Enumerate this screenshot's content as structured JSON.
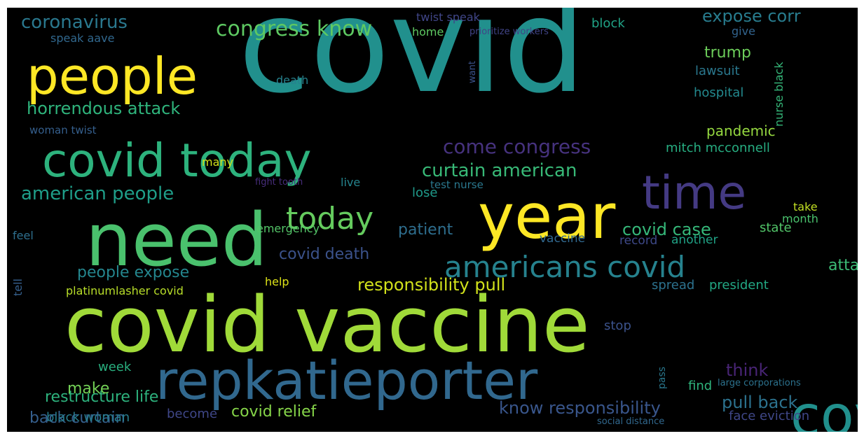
{
  "colors": {
    "background": "#000000",
    "palette": [
      "#440154",
      "#443a83",
      "#31688e",
      "#21908d",
      "#35b779",
      "#8fd744",
      "#fde725"
    ]
  },
  "words": [
    {
      "text": "covid",
      "c": "#21908d",
      "v": false
    },
    {
      "text": "covid vaccine",
      "c": "#a0da39",
      "v": false
    },
    {
      "text": "repkatieporter",
      "c": "#31688e",
      "v": false
    },
    {
      "text": "need",
      "c": "#4ac16d",
      "v": false
    },
    {
      "text": "year",
      "c": "#fde725",
      "v": false
    },
    {
      "text": "people",
      "c": "#fde725",
      "v": false
    },
    {
      "text": "covid today",
      "c": "#2db27d",
      "v": false
    },
    {
      "text": "covid test",
      "c": "#21908d",
      "v": true
    },
    {
      "text": "time",
      "c": "#443a83",
      "v": false
    },
    {
      "text": "americans covid",
      "c": "#26828e",
      "v": false
    },
    {
      "text": "today",
      "c": "#65cb5e",
      "v": false
    },
    {
      "text": "congress know",
      "c": "#5ec962",
      "v": false
    },
    {
      "text": "coronavirus",
      "c": "#2a788e",
      "v": false
    },
    {
      "text": "horrendous attack",
      "c": "#2fb47c",
      "v": false
    },
    {
      "text": "american people",
      "c": "#1f9e89",
      "v": false
    },
    {
      "text": "come congress",
      "c": "#46327e",
      "v": false
    },
    {
      "text": "curtain american",
      "c": "#38b977",
      "v": false
    },
    {
      "text": "expose corr",
      "c": "#287c8e",
      "v": false
    },
    {
      "text": "trump",
      "c": "#6ccd5a",
      "v": false
    },
    {
      "text": "lawsuit",
      "c": "#2a788e",
      "v": false
    },
    {
      "text": "hospital",
      "c": "#23898e",
      "v": false
    },
    {
      "text": "pandemic",
      "c": "#95d840",
      "v": false
    },
    {
      "text": "mitch mcconnell",
      "c": "#27ad81",
      "v": false
    },
    {
      "text": "attack restructure",
      "c": "#3cbb75",
      "v": true
    },
    {
      "text": "responsibility pull",
      "c": "#d2e21b",
      "v": false
    },
    {
      "text": "people expose",
      "c": "#24868e",
      "v": false
    },
    {
      "text": "platinumlasher covid",
      "c": "#b8de29",
      "v": false
    },
    {
      "text": "covid death",
      "c": "#3b528b",
      "v": false
    },
    {
      "text": "patient",
      "c": "#2e6e8e",
      "v": false
    },
    {
      "text": "covid case",
      "c": "#35b779",
      "v": false
    },
    {
      "text": "state",
      "c": "#52c569",
      "v": false
    },
    {
      "text": "restructure life",
      "c": "#2db27d",
      "v": true
    },
    {
      "text": "back curtain",
      "c": "#355f8d",
      "v": true
    },
    {
      "text": "think",
      "c": "#482475",
      "v": false
    },
    {
      "text": "pull back",
      "c": "#2c728e",
      "v": false
    },
    {
      "text": "know responsibility",
      "c": "#39568c",
      "v": false
    },
    {
      "text": "covid relief",
      "c": "#86d549",
      "v": false
    },
    {
      "text": "black woman",
      "c": "#287d8e",
      "v": false
    },
    {
      "text": "become",
      "c": "#3f4788",
      "v": false
    },
    {
      "text": "face eviction",
      "c": "#3f4788",
      "v": false
    },
    {
      "text": "make",
      "c": "#73d056",
      "v": false
    },
    {
      "text": "week",
      "c": "#29af7f",
      "v": false
    },
    {
      "text": "stop",
      "c": "#3b528b",
      "v": false
    },
    {
      "text": "find",
      "c": "#2fb47c",
      "v": false
    },
    {
      "text": "spread",
      "c": "#2c728e",
      "v": false
    },
    {
      "text": "president",
      "c": "#22a884",
      "v": false
    },
    {
      "text": "help",
      "c": "#dde318",
      "v": false
    },
    {
      "text": "emergency",
      "c": "#54c568",
      "v": false
    },
    {
      "text": "another",
      "c": "#20a386",
      "v": false
    },
    {
      "text": "record",
      "c": "#3e4989",
      "v": false
    },
    {
      "text": "vaccine",
      "c": "#31688e",
      "v": false
    },
    {
      "text": "take",
      "c": "#c2df23",
      "v": false
    },
    {
      "text": "month",
      "c": "#4ac16d",
      "v": false
    },
    {
      "text": "lose",
      "c": "#1f9a8a",
      "v": false
    },
    {
      "text": "live",
      "c": "#25848e",
      "v": false
    },
    {
      "text": "test nurse",
      "c": "#2a788e",
      "v": false
    },
    {
      "text": "many",
      "c": "#d2e21b",
      "v": false
    },
    {
      "text": "feel",
      "c": "#2e6f8e",
      "v": false
    },
    {
      "text": "tell",
      "c": "#355f8d",
      "v": true
    },
    {
      "text": "woman twist",
      "c": "#355f8d",
      "v": false
    },
    {
      "text": "speak aave",
      "c": "#31688e",
      "v": false
    },
    {
      "text": "home",
      "c": "#5ec962",
      "v": false
    },
    {
      "text": "block",
      "c": "#20a386",
      "v": false
    },
    {
      "text": "give",
      "c": "#32648e",
      "v": false
    },
    {
      "text": "twist speak",
      "c": "#404688",
      "v": false
    },
    {
      "text": "prioritize workers",
      "c": "#414487",
      "v": false
    },
    {
      "text": "death",
      "c": "#26828e",
      "v": false
    },
    {
      "text": "nurse black",
      "c": "#35b779",
      "v": true
    },
    {
      "text": "pass",
      "c": "#2a788e",
      "v": true
    },
    {
      "text": "fight tooth",
      "c": "#472d7b",
      "v": false
    },
    {
      "text": "large corporations",
      "c": "#2c728e",
      "v": false
    },
    {
      "text": "social distance",
      "c": "#31688e",
      "v": false
    },
    {
      "text": "want",
      "c": "#3b528b",
      "v": true
    }
  ]
}
